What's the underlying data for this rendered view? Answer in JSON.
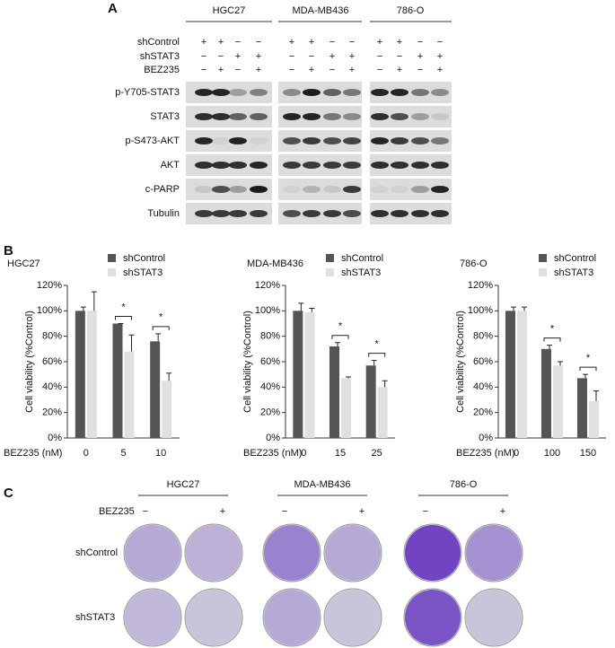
{
  "panel_labels": [
    "A",
    "B",
    "C"
  ],
  "western_blot": {
    "cell_lines": [
      "HGC27",
      "MDA-MB436",
      "786-O"
    ],
    "conditions": [
      {
        "name": "shControl",
        "signs": [
          "+",
          "+",
          "−",
          "−"
        ]
      },
      {
        "name": "shSTAT3",
        "signs": [
          "−",
          "−",
          "+",
          "+"
        ]
      },
      {
        "name": "BEZ235",
        "signs": [
          "−",
          "+",
          "−",
          "+"
        ]
      }
    ],
    "proteins": [
      "p-Y705-STAT3",
      "STAT3",
      "p-S473-AKT",
      "AKT",
      "c-PARP",
      "Tubulin"
    ]
  },
  "chart_data": [
    {
      "type": "bar",
      "title": "HGC27",
      "categories": [
        "0",
        "5",
        "10"
      ],
      "x_label": "BEZ235 (nM)",
      "y_label": "Cell viability (%Control)",
      "series": [
        {
          "name": "shControl",
          "color": "#555555",
          "values": [
            100,
            90,
            76
          ],
          "errors": [
            3,
            0,
            6
          ]
        },
        {
          "name": "shSTAT3",
          "color": "#e0e0e0",
          "values": [
            100,
            68,
            45
          ],
          "errors": [
            15,
            13,
            6
          ]
        }
      ],
      "ylim": [
        0,
        120
      ],
      "yticks": [
        {
          "value": 0,
          "label": "0%"
        },
        {
          "value": 20,
          "label": "20%"
        },
        {
          "value": 40,
          "label": "40%"
        },
        {
          "value": 60,
          "label": "60%"
        },
        {
          "value": 80,
          "label": "80%"
        },
        {
          "value": 100,
          "label": "100%"
        },
        {
          "value": 120,
          "label": "120%"
        }
      ],
      "annotations": [
        "*",
        "*"
      ]
    },
    {
      "type": "bar",
      "title": "MDA-MB436",
      "categories": [
        "0",
        "15",
        "25"
      ],
      "x_label": "BEZ235 (nM)",
      "y_label": "Cell viability (%Control)",
      "series": [
        {
          "name": "shControl",
          "color": "#555555",
          "values": [
            100,
            72,
            57
          ],
          "errors": [
            6,
            3,
            4
          ]
        },
        {
          "name": "shSTAT3",
          "color": "#e0e0e0",
          "values": [
            99,
            47,
            40
          ],
          "errors": [
            3,
            1,
            5
          ]
        }
      ],
      "ylim": [
        0,
        120
      ],
      "yticks": [
        {
          "value": 0,
          "label": "0%"
        },
        {
          "value": 20,
          "label": "20%"
        },
        {
          "value": 40,
          "label": "40%"
        },
        {
          "value": 60,
          "label": "60%"
        },
        {
          "value": 80,
          "label": "80%"
        },
        {
          "value": 100,
          "label": "100%"
        },
        {
          "value": 120,
          "label": "120%"
        }
      ],
      "annotations": [
        "*",
        "*"
      ]
    },
    {
      "type": "bar",
      "title": "786-O",
      "categories": [
        "0",
        "100",
        "150"
      ],
      "x_label": "BEZ235 (nM)",
      "y_label": "Cell viability (%Control)",
      "series": [
        {
          "name": "shControl",
          "color": "#555555",
          "values": [
            100,
            70,
            47
          ],
          "errors": [
            3,
            3,
            3
          ]
        },
        {
          "name": "shSTAT3",
          "color": "#e0e0e0",
          "values": [
            100,
            57,
            29
          ],
          "errors": [
            3,
            3,
            8
          ]
        }
      ],
      "ylim": [
        0,
        120
      ],
      "yticks": [
        {
          "value": 0,
          "label": "0%"
        },
        {
          "value": 20,
          "label": "20%"
        },
        {
          "value": 40,
          "label": "40%"
        },
        {
          "value": 60,
          "label": "60%"
        },
        {
          "value": 80,
          "label": "80%"
        },
        {
          "value": 100,
          "label": "100%"
        },
        {
          "value": 120,
          "label": "120%"
        }
      ],
      "annotations": [
        "*",
        "*"
      ]
    }
  ],
  "colony_assay": {
    "cell_lines": [
      "HGC27",
      "MDA-MB436",
      "786-O"
    ],
    "treatment": "BEZ235",
    "treatment_signs": [
      "−",
      "+"
    ],
    "rows": [
      "shControl",
      "shSTAT3"
    ]
  }
}
